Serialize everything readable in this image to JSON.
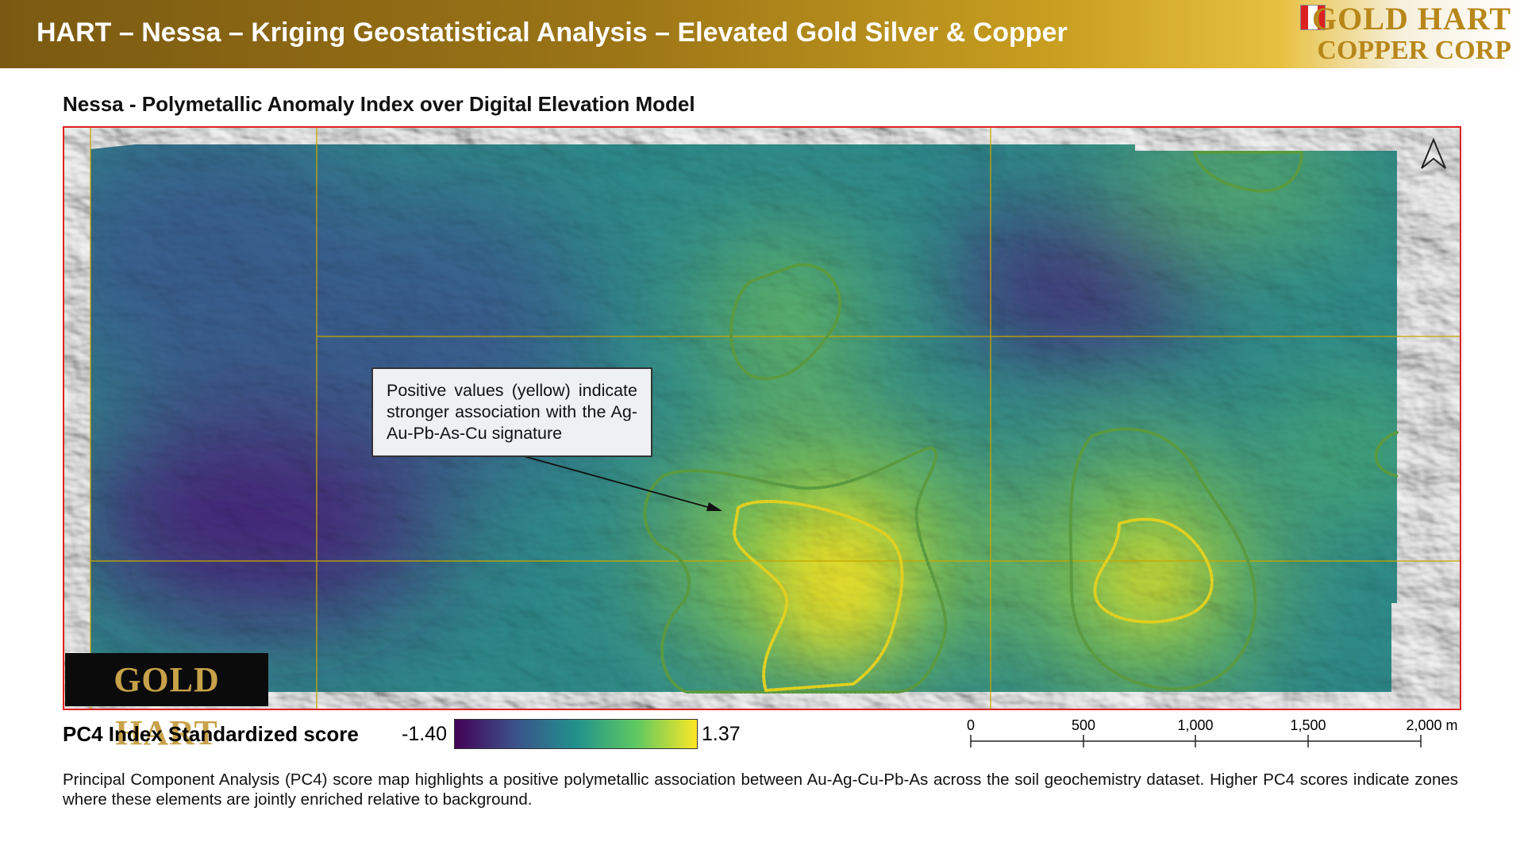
{
  "header": {
    "title": "HART – Nessa – Kriging Geostatistical Analysis – Elevated Gold Silver & Copper",
    "logo_line1": "GOLD HART",
    "logo_line2": "COPPER CORP"
  },
  "map": {
    "title": "Nessa - Polymetallic Anomaly Index over Digital Elevation Model",
    "callout": "Positive values (yellow) indicate stronger association with the Ag-Au-Pb-As-Cu signature",
    "logo": "GOLD HART"
  },
  "legend": {
    "label": "PC4 Index Standardized score",
    "min": "-1.40",
    "max": "1.37"
  },
  "scale_bar": {
    "ticks": [
      "0",
      "500",
      "1,000",
      "1,500",
      "2,000 m"
    ]
  },
  "caption": "Principal Component Analysis (PC4) score map highlights a positive polymetallic association between Au-Ag-Cu-Pb-As across the soil geochemistry dataset. Higher PC4 scores indicate zones where these elements are jointly enriched relative to background."
}
